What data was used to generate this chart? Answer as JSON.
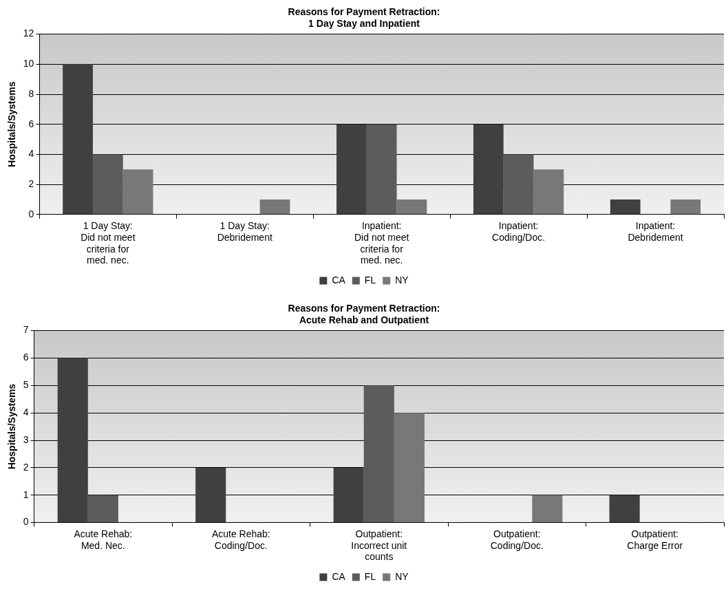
{
  "chart_data": [
    {
      "type": "bar",
      "title": "Reasons for Payment Retraction:\n1 Day Stay and Inpatient",
      "ylabel": "Hospitals/Systems",
      "categories": [
        "1 Day Stay: Did not meet criteria for med. nec.",
        "1 Day Stay: Debridement",
        "Inpatient: Did not meet criteria for med. nec.",
        "Inpatient: Coding/Doc.",
        "Inpatient: Debridement"
      ],
      "series": [
        {
          "name": "CA",
          "color": "#404040",
          "values": [
            10,
            0,
            6,
            6,
            1
          ]
        },
        {
          "name": "FL",
          "color": "#5c5c5c",
          "values": [
            4,
            0,
            6,
            4,
            0
          ]
        },
        {
          "name": "NY",
          "color": "#787878",
          "values": [
            3,
            1,
            1,
            3,
            1
          ]
        }
      ],
      "ylim": [
        0,
        12
      ],
      "yticks": [
        0,
        2,
        4,
        6,
        8,
        10,
        12
      ],
      "grid": "y",
      "legend": "bottom"
    },
    {
      "type": "bar",
      "title": "Reasons for Payment Retraction:\nAcute Rehab and Outpatient",
      "ylabel": "Hospitals/Systems",
      "categories": [
        "Acute Rehab: Med. Nec.",
        "Acute Rehab: Coding/Doc.",
        "Outpatient: Incorrect unit counts",
        "Outpatient: Coding/Doc.",
        "Outpatient: Charge Error"
      ],
      "series": [
        {
          "name": "CA",
          "color": "#404040",
          "values": [
            6,
            2,
            2,
            0,
            1
          ]
        },
        {
          "name": "FL",
          "color": "#5c5c5c",
          "values": [
            1,
            0,
            5,
            0,
            0
          ]
        },
        {
          "name": "NY",
          "color": "#787878",
          "values": [
            0,
            0,
            4,
            1,
            0
          ]
        }
      ],
      "ylim": [
        0,
        7
      ],
      "yticks": [
        0,
        1,
        2,
        3,
        4,
        5,
        6,
        7
      ],
      "grid": "y",
      "legend": "bottom"
    }
  ]
}
